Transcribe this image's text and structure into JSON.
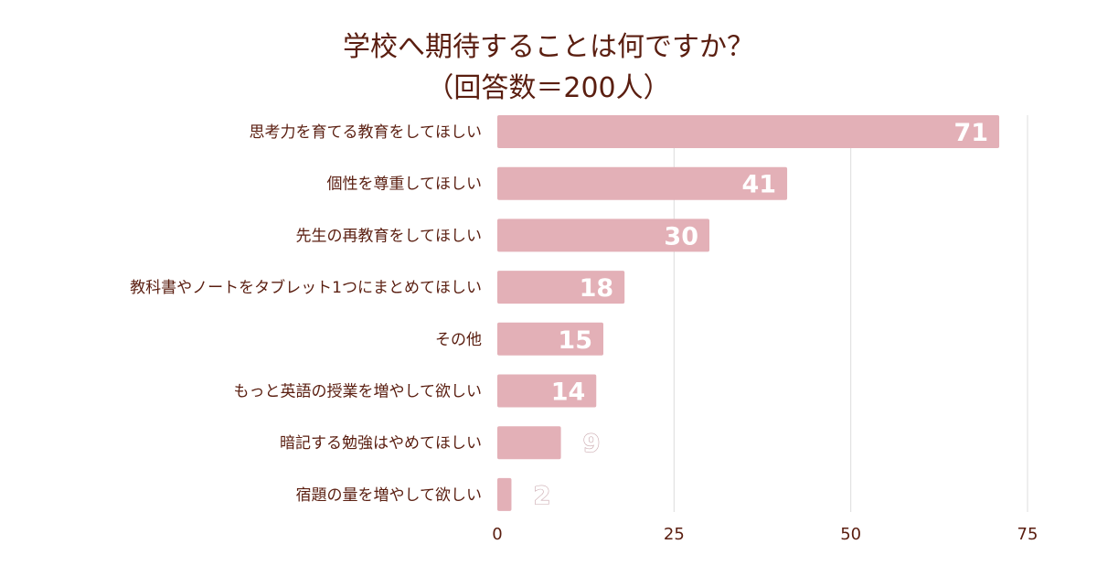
{
  "chart_data": {
    "type": "bar",
    "orientation": "horizontal",
    "title": "学校へ期待することは何ですか？",
    "subtitle": "（回答数＝200人）",
    "categories": [
      "思考力を育てる教育をしてほしい",
      "個性を尊重してほしい",
      "先生の再教育をしてほしい",
      "教科書やノートをタブレット1つにまとめてほしい",
      "その他",
      "もっと英語の授業を増やして欲しい",
      "暗記する勉強はやめてほしい",
      "宿題の量を増やして欲しい"
    ],
    "values": [
      71,
      41,
      30,
      18,
      15,
      14,
      9,
      2
    ],
    "xlim": [
      0,
      75
    ],
    "xticks": [
      "0",
      "25",
      "50",
      "75"
    ],
    "grid": true,
    "legend": false,
    "bar_color": "#e3b0b7",
    "title_color": "#5a1e10",
    "label_color": "#5a1e10",
    "value_label_color": "#ffffff"
  }
}
